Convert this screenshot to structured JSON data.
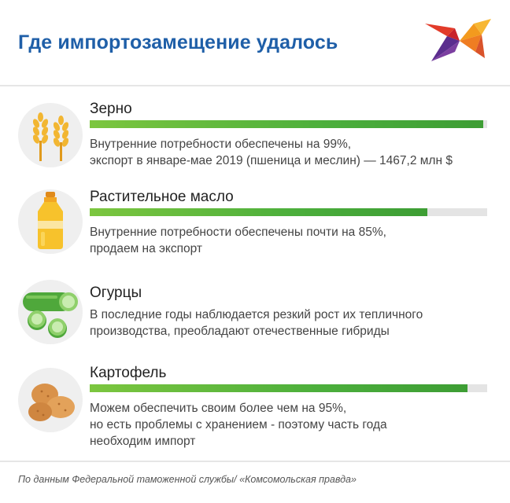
{
  "header": {
    "title": "Где импортозамещение удалось"
  },
  "chart_data": {
    "type": "bar",
    "orientation": "horizontal",
    "title": "Где импортозамещение удалось",
    "items": [
      {
        "name": "Зерно",
        "icon": "wheat-icon",
        "value": 99,
        "desc_lines": [
          "Внутренние потребности обеспечены на 99%,",
          "экспорт в январе-мае 2019 (пшеница и меслин) — 1467,2 млн $"
        ]
      },
      {
        "name": "Растительное масло",
        "icon": "oil-bottle-icon",
        "value": 85,
        "desc_lines": [
          "Внутренние потребности обеспечены почти на 85%,",
          "продаем на экспорт"
        ]
      },
      {
        "name": "Огурцы",
        "icon": "cucumber-icon",
        "value": null,
        "desc_lines": [
          "В последние годы наблюдается резкий рост их тепличного",
          "производства, преобладают отечественные гибриды"
        ]
      },
      {
        "name": "Картофель",
        "icon": "potato-icon",
        "value": 95,
        "desc_lines": [
          "Можем обеспечить своим более чем на 95%,",
          "но есть проблемы с хранением - поэтому часть года",
          "необходим импорт"
        ]
      }
    ],
    "xlim": [
      0,
      100
    ],
    "colors": {
      "bar": "#4caf3c",
      "track": "#e4e4e4",
      "title": "#1f5fa8"
    }
  },
  "footer": {
    "source": "По данным Федеральной таможенной службы/ «Комсомольская правда»"
  }
}
